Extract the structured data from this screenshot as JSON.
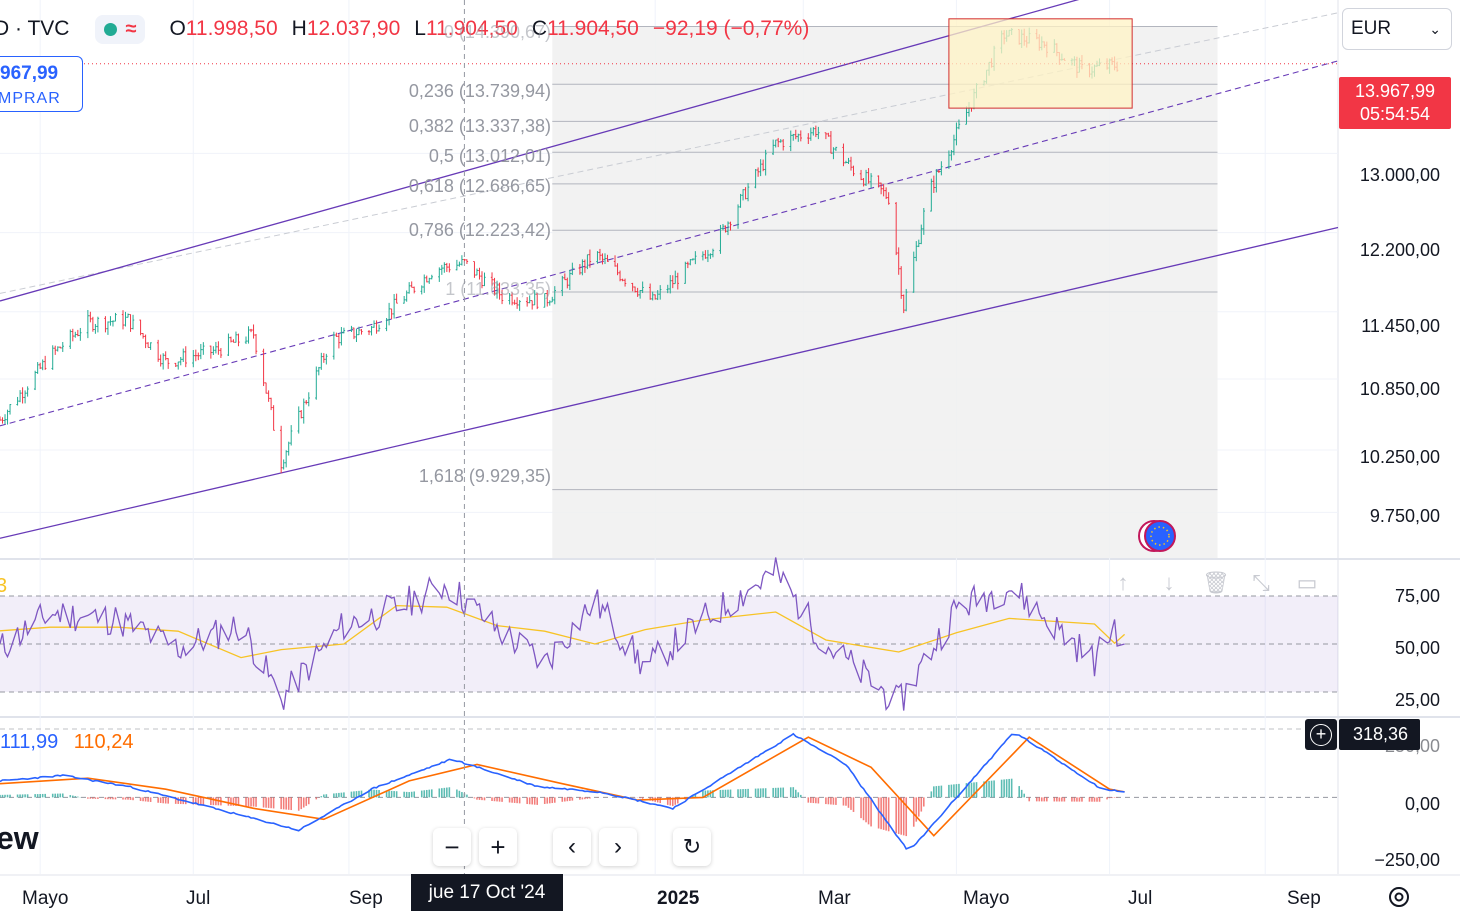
{
  "header": {
    "symbol": "D · TVC",
    "ohlc": [
      {
        "k": "O",
        "v": "11.998,50"
      },
      {
        "k": "H",
        "v": "12.037,90"
      },
      {
        "k": "L",
        "v": "11.904,50"
      },
      {
        "k": "C",
        "v": "11.904,50"
      }
    ],
    "change": "−92,19 (−0,77%)",
    "market_status_icon": "market-open-dot-icon",
    "wave_icon": "wave-icon"
  },
  "buy": {
    "price": "967,99",
    "label": "MPRAR"
  },
  "currency": {
    "selected": "EUR",
    "icon": "chevron-down-icon"
  },
  "last_price": {
    "price": "13.967,99",
    "countdown": "05:54:54"
  },
  "fib_levels": [
    {
      "text": "0 (14.390,67)"
    },
    {
      "text": "0,236 (13.739,94)"
    },
    {
      "text": "0,382 (13.337,38)"
    },
    {
      "text": "0,5 (13.012,01)"
    },
    {
      "text": "0,618 (12.686,65)"
    },
    {
      "text": "0,786 (12.223,42)"
    },
    {
      "text": "1 (11.633,35)"
    },
    {
      "text": "1,618 (9.929,35)"
    }
  ],
  "price_axis": [
    "13.000,00",
    "12.200,00",
    "11.450,00",
    "10.850,00",
    "10.250,00",
    "9.750,00"
  ],
  "rsi_axis": [
    "75,00",
    "50,00",
    "25,00"
  ],
  "rsi_value": "3",
  "macd_axis": [
    "250,00",
    "0,00",
    "−250,00"
  ],
  "macd_values": {
    "macd": "111,99",
    "signal": "110,24"
  },
  "macd_last_label": "318,36",
  "watermark": "ew",
  "time_axis": [
    "Mayo",
    "Jul",
    "Sep",
    "2025",
    "Mar",
    "Mayo",
    "Jul",
    "Sep"
  ],
  "crosshair_date": "jue 17 Oct '24",
  "toolbar": [
    "minus-icon",
    "plus-icon",
    "arrow-left-icon",
    "arrow-right-icon",
    "reset-icon"
  ],
  "pane_controls": [
    "move-up-icon",
    "move-down-icon",
    "delete-icon",
    "collapse-icon",
    "maximize-icon"
  ],
  "colors": {
    "up": "#22ab94",
    "down": "#f23645",
    "channel": "#673ab7",
    "rsi": "#7e57c2",
    "rsi_ma": "#f7c325",
    "macd": "#2962ff",
    "signal": "#ff6d00",
    "fib_zone": "#f0f0f0"
  },
  "chart_data": [
    {
      "type": "candlestick",
      "title": "",
      "x_range": [
        "2024-04-15",
        "2025-09-30"
      ],
      "y_range": [
        9400,
        14700
      ],
      "log_scale": true,
      "x_ticks": [
        "Mayo",
        "Jul",
        "Sep",
        "2025",
        "Mar",
        "Mayo",
        "Jul",
        "Sep"
      ],
      "y_ticks": [
        13000,
        12200,
        11450,
        10850,
        10250,
        9750
      ],
      "price_path": [
        {
          "date": "2024-04-15",
          "close": 10500
        },
        {
          "date": "2024-05-05",
          "close": 11050
        },
        {
          "date": "2024-05-20",
          "close": 11350
        },
        {
          "date": "2024-06-05",
          "close": 11380
        },
        {
          "date": "2024-06-20",
          "close": 11000
        },
        {
          "date": "2024-07-10",
          "close": 11100
        },
        {
          "date": "2024-07-25",
          "close": 11250
        },
        {
          "date": "2024-08-05",
          "close": 10150
        },
        {
          "date": "2024-08-25",
          "close": 11200
        },
        {
          "date": "2024-09-10",
          "close": 11300
        },
        {
          "date": "2024-10-05",
          "close": 11850
        },
        {
          "date": "2024-10-17",
          "close": 11904.5
        },
        {
          "date": "2024-11-01",
          "close": 11600
        },
        {
          "date": "2024-11-18",
          "close": 11550
        },
        {
          "date": "2024-12-08",
          "close": 11990
        },
        {
          "date": "2024-12-31",
          "close": 11550
        },
        {
          "date": "2025-01-25",
          "close": 12100
        },
        {
          "date": "2025-02-18",
          "close": 13100
        },
        {
          "date": "2025-03-06",
          "close": 13250
        },
        {
          "date": "2025-03-20",
          "close": 12850
        },
        {
          "date": "2025-04-04",
          "close": 12550
        },
        {
          "date": "2025-04-10",
          "close": 11500
        },
        {
          "date": "2025-04-20",
          "close": 12600
        },
        {
          "date": "2025-05-01",
          "close": 13200
        },
        {
          "date": "2025-05-20",
          "close": 14300
        },
        {
          "date": "2025-06-05",
          "close": 14200
        },
        {
          "date": "2025-06-20",
          "close": 13900
        },
        {
          "date": "2025-07-07",
          "close": 13967.99
        }
      ],
      "fibonacci": [
        {
          "ratio": 0,
          "price": 14390.67
        },
        {
          "ratio": 0.236,
          "price": 13739.94
        },
        {
          "ratio": 0.382,
          "price": 13337.38
        },
        {
          "ratio": 0.5,
          "price": 13012.01
        },
        {
          "ratio": 0.618,
          "price": 12686.65
        },
        {
          "ratio": 0.786,
          "price": 12223.42
        },
        {
          "ratio": 1,
          "price": 11633.35
        },
        {
          "ratio": 1.618,
          "price": 9929.35
        }
      ],
      "last_price": 13967.99,
      "currency": "EUR"
    },
    {
      "type": "line",
      "title": "",
      "y_range": [
        20,
        85
      ],
      "y_ticks": [
        75,
        50,
        25
      ],
      "band": [
        30,
        70
      ],
      "points": [
        {
          "date": "2024-04-15",
          "value": 48
        },
        {
          "date": "2024-05-05",
          "value": 63
        },
        {
          "date": "2024-06-01",
          "value": 60
        },
        {
          "date": "2024-06-25",
          "value": 48
        },
        {
          "date": "2024-07-20",
          "value": 58
        },
        {
          "date": "2024-08-05",
          "value": 27
        },
        {
          "date": "2024-08-30",
          "value": 58
        },
        {
          "date": "2024-09-20",
          "value": 65
        },
        {
          "date": "2024-10-10",
          "value": 75
        },
        {
          "date": "2024-10-30",
          "value": 56
        },
        {
          "date": "2024-11-18",
          "value": 42
        },
        {
          "date": "2024-12-08",
          "value": 68
        },
        {
          "date": "2024-12-28",
          "value": 40
        },
        {
          "date": "2025-01-20",
          "value": 60
        },
        {
          "date": "2025-02-18",
          "value": 80
        },
        {
          "date": "2025-03-10",
          "value": 50
        },
        {
          "date": "2025-04-08",
          "value": 25
        },
        {
          "date": "2025-05-01",
          "value": 65
        },
        {
          "date": "2025-05-22",
          "value": 74
        },
        {
          "date": "2025-06-25",
          "value": 43
        },
        {
          "date": "2025-07-03",
          "value": 58
        },
        {
          "date": "2025-07-07",
          "value": 50
        }
      ]
    },
    {
      "type": "line",
      "title": "",
      "y_range": [
        -280,
        290
      ],
      "y_ticks": [
        250,
        0,
        -250
      ],
      "macd": [
        {
          "date": "2024-04-15",
          "value": 60
        },
        {
          "date": "2024-05-10",
          "value": 80
        },
        {
          "date": "2024-06-05",
          "value": 40
        },
        {
          "date": "2024-07-05",
          "value": -30
        },
        {
          "date": "2024-08-12",
          "value": -120
        },
        {
          "date": "2024-09-10",
          "value": 30
        },
        {
          "date": "2024-10-12",
          "value": 140
        },
        {
          "date": "2024-11-15",
          "value": 40
        },
        {
          "date": "2024-12-10",
          "value": 20
        },
        {
          "date": "2025-01-08",
          "value": -40
        },
        {
          "date": "2025-02-25",
          "value": 230
        },
        {
          "date": "2025-03-18",
          "value": 120
        },
        {
          "date": "2025-04-12",
          "value": -200
        },
        {
          "date": "2025-05-24",
          "value": 240
        },
        {
          "date": "2025-06-28",
          "value": 30
        },
        {
          "date": "2025-07-07",
          "value": 20
        }
      ],
      "signal": [
        {
          "date": "2024-04-15",
          "value": 50
        },
        {
          "date": "2024-05-20",
          "value": 70
        },
        {
          "date": "2024-06-20",
          "value": 30
        },
        {
          "date": "2024-07-25",
          "value": -40
        },
        {
          "date": "2024-08-22",
          "value": -80
        },
        {
          "date": "2024-09-25",
          "value": 60
        },
        {
          "date": "2024-10-22",
          "value": 120
        },
        {
          "date": "2024-11-25",
          "value": 50
        },
        {
          "date": "2024-12-25",
          "value": -10
        },
        {
          "date": "2025-01-20",
          "value": 0
        },
        {
          "date": "2025-03-03",
          "value": 220
        },
        {
          "date": "2025-03-28",
          "value": 110
        },
        {
          "date": "2025-04-22",
          "value": -140
        },
        {
          "date": "2025-05-30",
          "value": 220
        },
        {
          "date": "2025-07-01",
          "value": 30
        },
        {
          "date": "2025-07-07",
          "value": 20
        }
      ]
    }
  ]
}
